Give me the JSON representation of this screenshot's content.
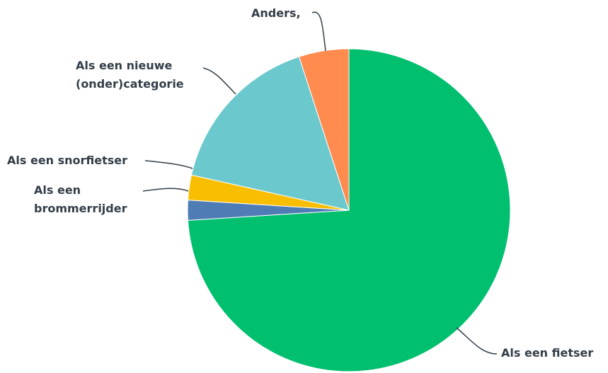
{
  "chart_data": {
    "type": "pie",
    "categories": [
      "Als een fietser",
      "Als een brommerrijder",
      "Als een snorfietser",
      "Als een nieuwe (onder)categorie",
      "Anders,"
    ],
    "values": [
      74,
      2,
      2.5,
      16.5,
      5
    ],
    "colors": [
      "#00bf6f",
      "#507cb6",
      "#f9be00",
      "#6bc8cd",
      "#ff8b4f"
    ]
  }
}
